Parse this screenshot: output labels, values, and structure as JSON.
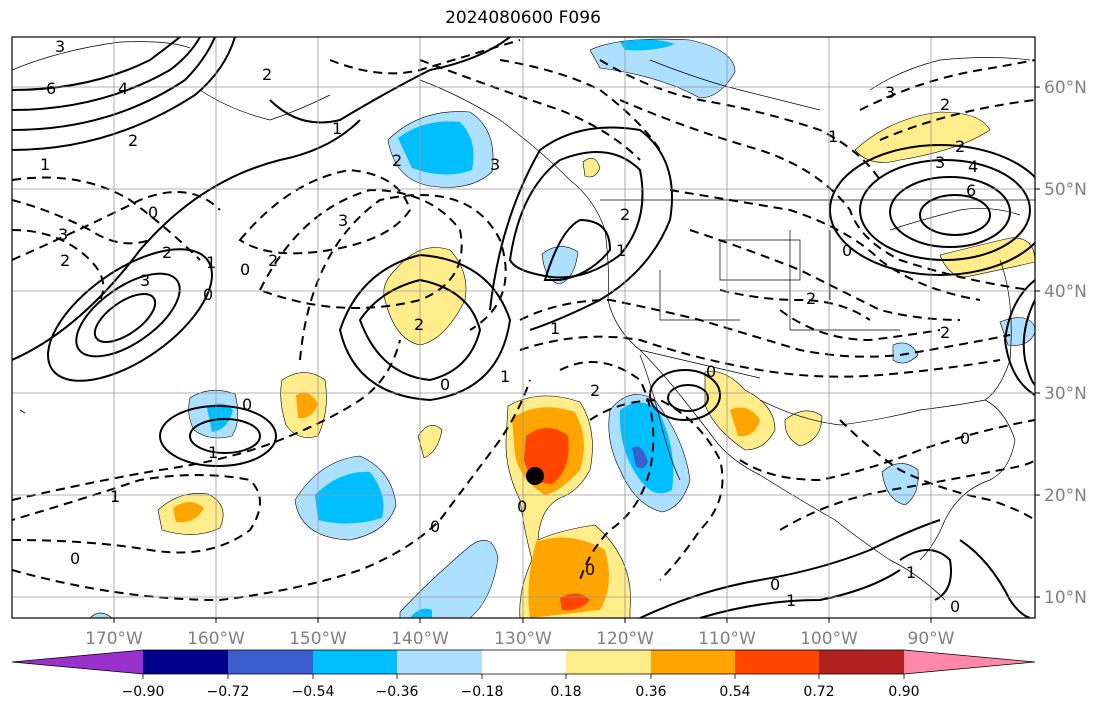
{
  "title": "2024080600 F096",
  "lat_labels": [
    "60°N",
    "50°N",
    "40°N",
    "30°N",
    "20°N",
    "10°N"
  ],
  "lon_labels": [
    "170°W",
    "160°W",
    "150°W",
    "140°W",
    "130°W",
    "120°W",
    "110°W",
    "100°W",
    "90°W"
  ],
  "colorbar": {
    "tick_labels": [
      "−0.90",
      "−0.72",
      "−0.54",
      "−0.36",
      "−0.18",
      "0.18",
      "0.36",
      "0.54",
      "0.72",
      "0.90"
    ],
    "colors": [
      "#9932CC",
      "#00008B",
      "#3A5FCD",
      "#00BFFF",
      "#ADDFFF",
      "#FFFFFF",
      "#FFEC8B",
      "#FFA500",
      "#FF4500",
      "#B22222",
      "#FF88AA"
    ]
  },
  "contour_labels": [
    "3",
    "6",
    "4",
    "2",
    "1",
    "3",
    "2",
    "0",
    "2",
    "3",
    "1",
    "2",
    "0",
    "2",
    "3",
    "2",
    "2",
    "0",
    "1",
    "3",
    "2",
    "1",
    "0",
    "1",
    "0",
    "3",
    "0",
    "1",
    "0",
    "2",
    "0",
    "1",
    "0",
    "2",
    "1",
    "3",
    "2",
    "4",
    "6",
    "2",
    "0",
    "2",
    "1",
    "0",
    "1",
    "1",
    "0",
    "0",
    "0"
  ],
  "marker": "storm-center"
}
